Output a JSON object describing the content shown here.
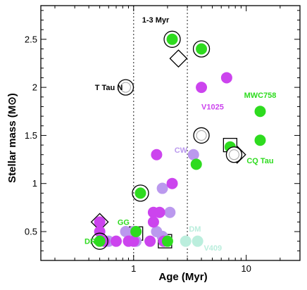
{
  "chart_data": {
    "type": "scatter",
    "xlabel": "Age (Myr)",
    "ylabel": "Stellar mass (M⊙)",
    "x_scale": "log",
    "xlim": [
      0.15,
      30
    ],
    "ylim": [
      0.2,
      2.85
    ],
    "x_ticks": [
      {
        "value": 1,
        "label": "1"
      },
      {
        "value": 10,
        "label": "10"
      }
    ],
    "x_minor_ticks": [
      0.2,
      0.3,
      0.4,
      0.5,
      0.6,
      0.7,
      0.8,
      0.9,
      2,
      3,
      4,
      5,
      6,
      7,
      8,
      9,
      20,
      30
    ],
    "y_ticks": [
      {
        "value": 0.5,
        "label": "0.5"
      },
      {
        "value": 1.0,
        "label": "1"
      },
      {
        "value": 1.5,
        "label": "1.5"
      },
      {
        "value": 2.0,
        "label": "2"
      },
      {
        "value": 2.5,
        "label": "2.5"
      }
    ],
    "y_minor_step": 0.1,
    "vlines": [
      1,
      3
    ],
    "band_label": "1-3 Myr",
    "colors": {
      "green": "#2edb1f",
      "magenta": "#cc44ee",
      "lilac": "#bb99ee",
      "mint": "#bbeedd"
    },
    "series": [
      {
        "color": "green",
        "points": [
          [
            2.2,
            2.5
          ],
          [
            4.0,
            2.4
          ],
          [
            13.3,
            1.75
          ],
          [
            13.3,
            1.45
          ],
          [
            3.6,
            1.2
          ],
          [
            7.2,
            1.38
          ],
          [
            1.15,
            0.9
          ],
          [
            0.5,
            0.4
          ],
          [
            1.05,
            0.5
          ],
          [
            2.0,
            0.4
          ]
        ]
      },
      {
        "color": "magenta",
        "points": [
          [
            4.0,
            2.0
          ],
          [
            6.7,
            2.1
          ],
          [
            1.6,
            1.3
          ],
          [
            2.2,
            1.0
          ],
          [
            1.5,
            0.7
          ],
          [
            1.7,
            0.7
          ],
          [
            0.5,
            0.6
          ],
          [
            0.5,
            0.5
          ],
          [
            0.55,
            0.4
          ],
          [
            0.7,
            0.4
          ],
          [
            0.9,
            0.4
          ],
          [
            1.0,
            0.4
          ],
          [
            1.5,
            0.6
          ],
          [
            1.4,
            0.4
          ],
          [
            1.85,
            0.4
          ]
        ]
      },
      {
        "color": "lilac",
        "points": [
          [
            3.4,
            1.3
          ],
          [
            1.8,
            0.95
          ],
          [
            2.1,
            0.7
          ],
          [
            1.6,
            0.5
          ],
          [
            0.85,
            0.5
          ],
          [
            1.8,
            0.45
          ],
          [
            1.0,
            0.5
          ],
          [
            1.05,
            0.4
          ],
          [
            0.6,
            0.4
          ]
        ]
      },
      {
        "color": "mint",
        "points": [
          [
            2.9,
            0.4
          ],
          [
            3.7,
            0.4
          ]
        ]
      }
    ],
    "circle_markers": [
      {
        "x": 2.2,
        "y": 2.5,
        "style": "ring"
      },
      {
        "x": 4.0,
        "y": 2.4,
        "style": "ring"
      },
      {
        "x": 0.85,
        "y": 2.0,
        "style": "double"
      },
      {
        "x": 4.0,
        "y": 1.5,
        "style": "double"
      },
      {
        "x": 7.8,
        "y": 1.3,
        "style": "double"
      },
      {
        "x": 1.15,
        "y": 0.9,
        "style": "ring"
      },
      {
        "x": 0.5,
        "y": 0.4,
        "style": "ring"
      }
    ],
    "square_markers": [
      {
        "x": 7.2,
        "y": 1.4
      },
      {
        "x": 1.05,
        "y": 0.48
      },
      {
        "x": 1.9,
        "y": 0.4
      }
    ],
    "diamond_markers": [
      {
        "x": 2.5,
        "y": 2.3
      },
      {
        "x": 8.3,
        "y": 1.3
      },
      {
        "x": 0.5,
        "y": 0.6
      }
    ],
    "labels": [
      {
        "text": "T Tau N",
        "x": 0.8,
        "y": 2.0,
        "color": "black",
        "anchor": "end"
      },
      {
        "text": "V1025",
        "x": 4.0,
        "y": 1.8,
        "color": "magenta",
        "anchor": "start"
      },
      {
        "text": "MWC758",
        "x": 13.3,
        "y": 1.92,
        "color": "green",
        "anchor": "middle"
      },
      {
        "text": "CW",
        "x": 3.0,
        "y": 1.35,
        "color": "lilac",
        "anchor": "end"
      },
      {
        "text": "CQ Tau",
        "x": 13.3,
        "y": 1.24,
        "color": "green",
        "anchor": "middle"
      },
      {
        "text": "GG",
        "x": 0.92,
        "y": 0.6,
        "color": "green",
        "anchor": "end"
      },
      {
        "text": "DR",
        "x": 0.46,
        "y": 0.4,
        "color": "green",
        "anchor": "end"
      },
      {
        "text": "DM",
        "x": 3.1,
        "y": 0.53,
        "color": "mint",
        "anchor": "start"
      },
      {
        "text": "V409",
        "x": 4.2,
        "y": 0.33,
        "color": "mint",
        "anchor": "start"
      }
    ]
  }
}
